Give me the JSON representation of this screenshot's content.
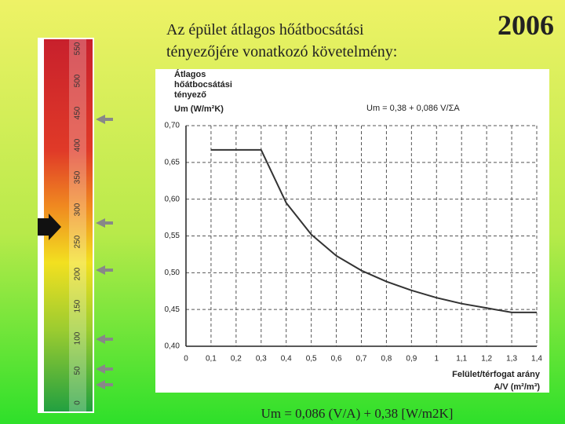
{
  "slide": {
    "title": [
      "Az épület átlagos hőátbocsátási",
      "tényezőjére  vonatkozó követelmény:"
    ],
    "year": "2006",
    "caption": "Um = 0,086 (V/A) + 0,38  [W/m2K]",
    "scale_labels": [
      0,
      50,
      100,
      150,
      200,
      250,
      300,
      350,
      400,
      450,
      500,
      550
    ]
  },
  "chart_data": {
    "type": "line",
    "y_label": [
      "Átlagos",
      "hőátbocsátási",
      "tényező",
      "Um (W/m²K)"
    ],
    "annotation": "Um = 0,38 + 0,086 V/ΣA",
    "x_label": [
      "Felület/térfogat arány",
      "A/V (m²/m³)"
    ],
    "x": [
      0.1,
      0.3,
      0.4,
      0.5,
      0.6,
      0.7,
      0.8,
      0.9,
      1.0,
      1.1,
      1.2,
      1.3,
      1.4
    ],
    "series": [
      {
        "name": "Um",
        "color": "#333333",
        "values": [
          0.667,
          0.667,
          0.595,
          0.552,
          0.523,
          0.503,
          0.488,
          0.476,
          0.466,
          0.458,
          0.452,
          0.446,
          0.446
        ]
      }
    ],
    "xlim": [
      0,
      1.4
    ],
    "ylim": [
      0.4,
      0.7
    ],
    "xticks": [
      0,
      {
        "value": 0.1,
        "label": "0,1"
      },
      {
        "value": 0.2,
        "label": "0,2"
      },
      {
        "value": 0.3,
        "label": "0,3"
      },
      {
        "value": 0.4,
        "label": "0,4"
      },
      {
        "value": 0.5,
        "label": "0,5"
      },
      {
        "value": 0.6,
        "label": "0,6"
      },
      {
        "value": 0.7,
        "label": "0,7"
      },
      {
        "value": 0.8,
        "label": "0,8"
      },
      {
        "value": 0.9,
        "label": "0,9"
      },
      1,
      {
        "value": 1.1,
        "label": "1,1"
      },
      {
        "value": 1.2,
        "label": "1,2"
      },
      {
        "value": 1.3,
        "label": "1,3"
      },
      {
        "value": 1.4,
        "label": "1,4"
      }
    ],
    "yticks": [
      {
        "value": 0.4,
        "label": "0,40"
      },
      {
        "value": 0.45,
        "label": "0,45"
      },
      {
        "value": 0.5,
        "label": "0,50"
      },
      {
        "value": 0.55,
        "label": "0,55"
      },
      {
        "value": 0.6,
        "label": "0,60"
      },
      {
        "value": 0.65,
        "label": "0,65"
      },
      {
        "value": 0.7,
        "label": "0,70"
      }
    ],
    "grid": true
  }
}
